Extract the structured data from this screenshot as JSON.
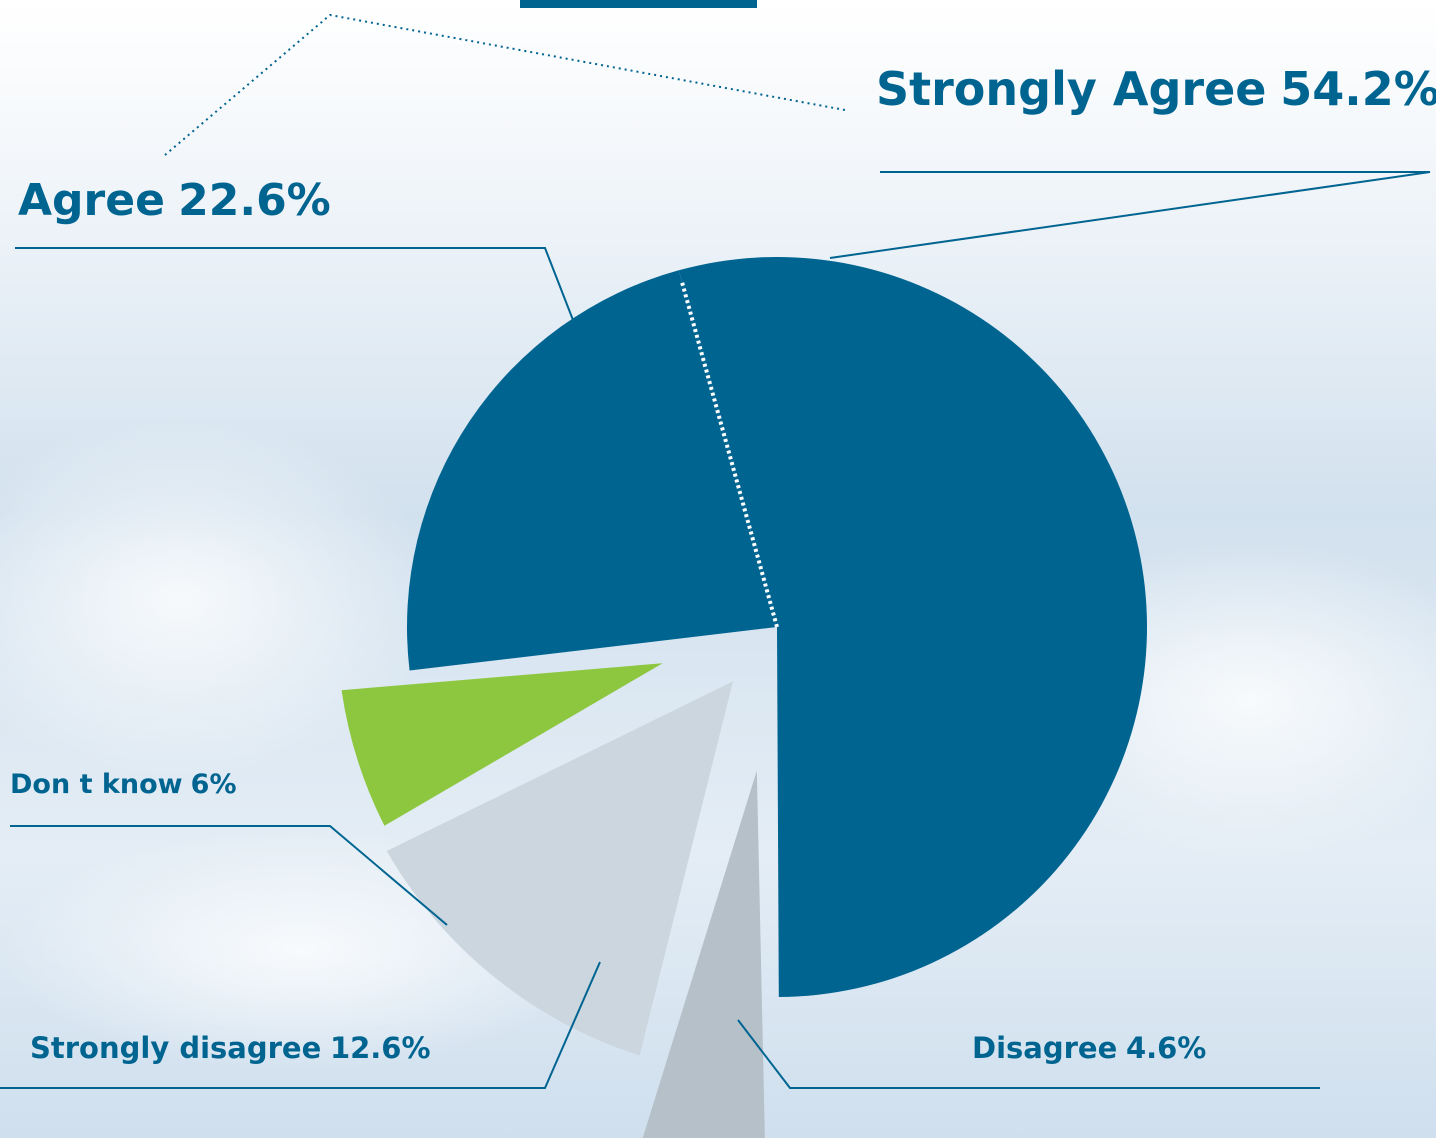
{
  "chart_data": {
    "type": "pie",
    "categories": [
      "Strongly Agree",
      "Disagree",
      "Strongly disagree",
      "Don t know",
      "Agree"
    ],
    "values": [
      54.2,
      4.6,
      12.6,
      6,
      22.6
    ],
    "value_labels": [
      "54.2%",
      "4.6%",
      "12.6%",
      "6%",
      "22.6%"
    ],
    "colors": [
      "#006491",
      "#b5c0c8",
      "#cbd6df",
      "#8dc63f",
      "#006491"
    ]
  }
}
